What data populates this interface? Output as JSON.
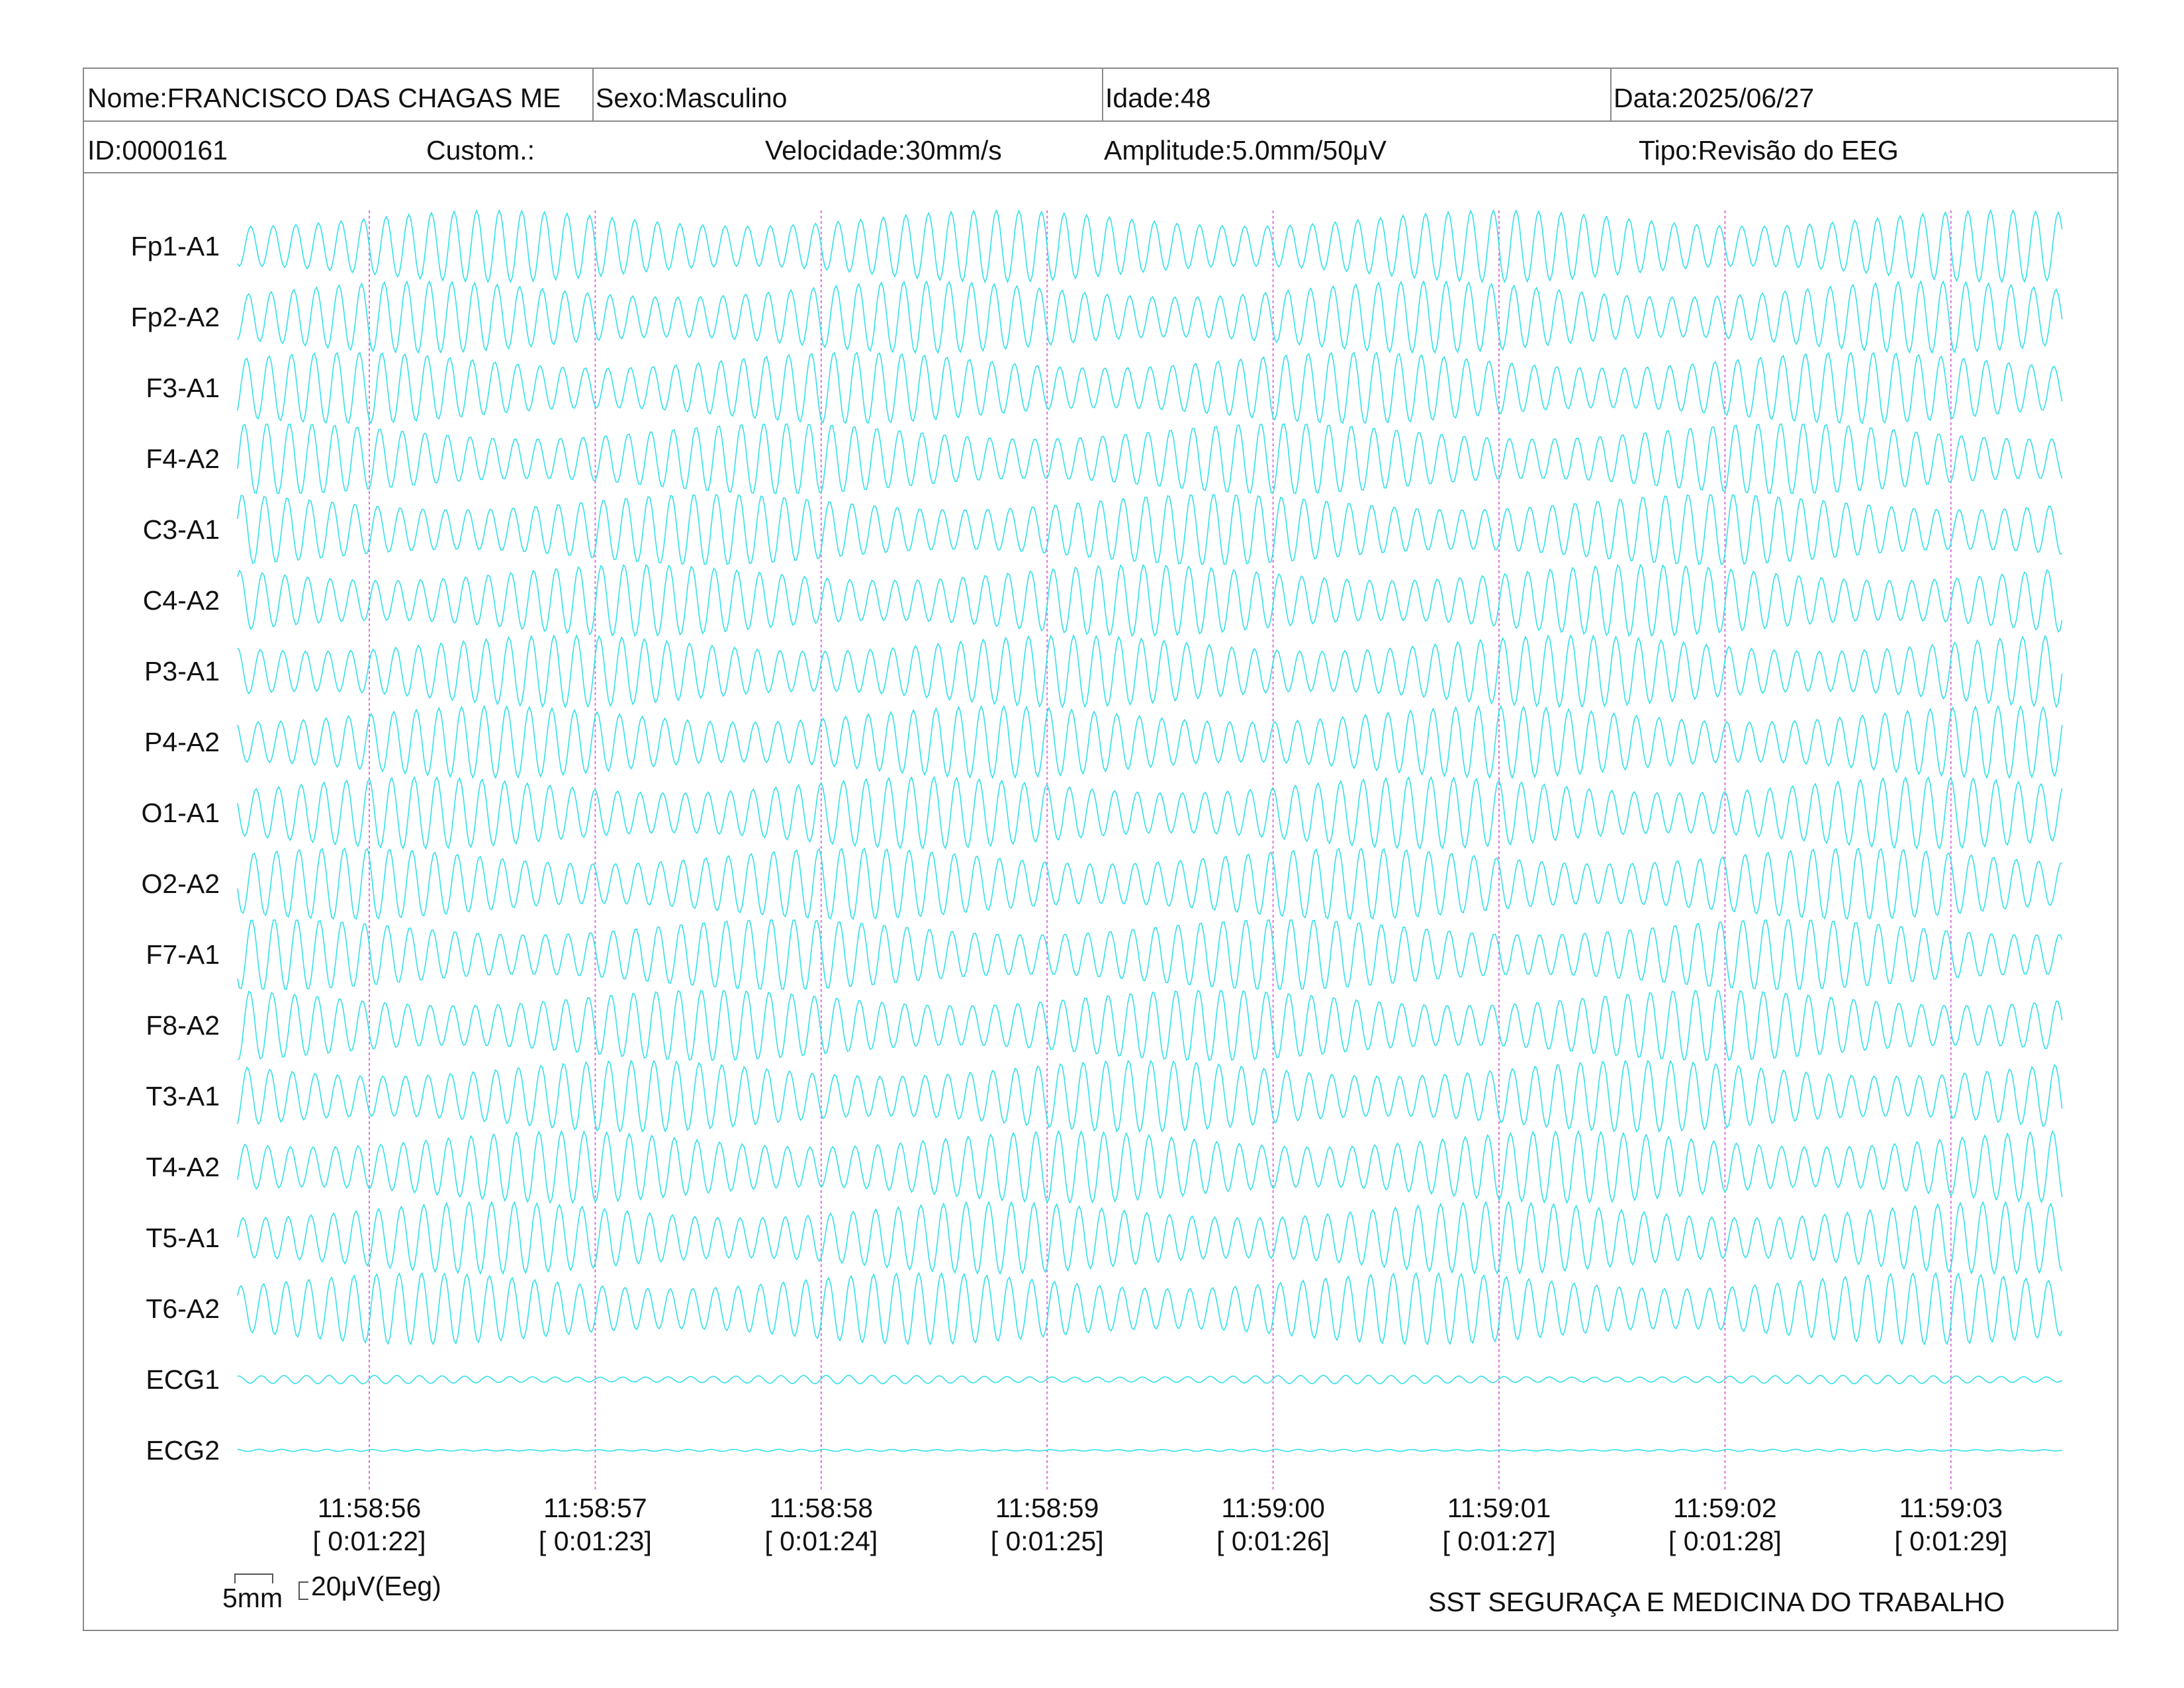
{
  "header": {
    "row1": {
      "nome": "Nome:FRANCISCO DAS CHAGAS ME",
      "sexo": "Sexo:Masculino",
      "idade": "Idade:48",
      "data": "Data:2025/06/27"
    },
    "row2": {
      "id": "ID:0000161",
      "custom": "Custom.:",
      "velocidade": "Velocidade:30mm/s",
      "amplitude": "Amplitude:5.0mm/50μV",
      "tipo": "Tipo:Revisão do EEG"
    }
  },
  "colors": {
    "trace": "#33e0e8",
    "marker": "#e070e0",
    "border": "#8a8a8a"
  },
  "chart_data": {
    "type": "line",
    "series": [
      {
        "name": "Fp1-A1",
        "frequency_hz": 10,
        "amplitude": 1.0
      },
      {
        "name": "Fp2-A2",
        "frequency_hz": 10,
        "amplitude": 1.0
      },
      {
        "name": "F3-A1",
        "frequency_hz": 10,
        "amplitude": 1.0
      },
      {
        "name": "F4-A2",
        "frequency_hz": 10,
        "amplitude": 1.0
      },
      {
        "name": "C3-A1",
        "frequency_hz": 10,
        "amplitude": 1.0
      },
      {
        "name": "C4-A2",
        "frequency_hz": 10,
        "amplitude": 1.0
      },
      {
        "name": "P3-A1",
        "frequency_hz": 10,
        "amplitude": 1.0
      },
      {
        "name": "P4-A2",
        "frequency_hz": 10,
        "amplitude": 1.0
      },
      {
        "name": "O1-A1",
        "frequency_hz": 10,
        "amplitude": 1.0
      },
      {
        "name": "O2-A2",
        "frequency_hz": 10,
        "amplitude": 1.0
      },
      {
        "name": "F7-A1",
        "frequency_hz": 10,
        "amplitude": 1.0
      },
      {
        "name": "F8-A2",
        "frequency_hz": 10,
        "amplitude": 1.0
      },
      {
        "name": "T3-A1",
        "frequency_hz": 10,
        "amplitude": 1.0
      },
      {
        "name": "T4-A2",
        "frequency_hz": 10,
        "amplitude": 1.0
      },
      {
        "name": "T5-A1",
        "frequency_hz": 10,
        "amplitude": 1.0
      },
      {
        "name": "T6-A2",
        "frequency_hz": 10,
        "amplitude": 1.0
      },
      {
        "name": "ECG1",
        "frequency_hz": 10,
        "amplitude": 0.12
      },
      {
        "name": "ECG2",
        "frequency_hz": 10,
        "amplitude": 0.03
      }
    ],
    "time_markers": [
      {
        "clock": "11:58:56",
        "elapsed": "[ 0:01:22]"
      },
      {
        "clock": "11:58:57",
        "elapsed": "[ 0:01:23]"
      },
      {
        "clock": "11:58:58",
        "elapsed": "[ 0:01:24]"
      },
      {
        "clock": "11:58:59",
        "elapsed": "[ 0:01:25]"
      },
      {
        "clock": "11:59:00",
        "elapsed": "[ 0:01:26]"
      },
      {
        "clock": "11:59:01",
        "elapsed": "[ 0:01:27]"
      },
      {
        "clock": "11:59:02",
        "elapsed": "[ 0:01:28]"
      },
      {
        "clock": "11:59:03",
        "elapsed": "[ 0:01:29]"
      }
    ],
    "x_range_seconds": [
      -0.6,
      7.5
    ]
  },
  "scale": {
    "time_label": "5mm",
    "amp_label": "20μV(Eeg)"
  },
  "footer": {
    "company": "SST SEGURAÇA E MEDICINA DO TRABALHO"
  }
}
